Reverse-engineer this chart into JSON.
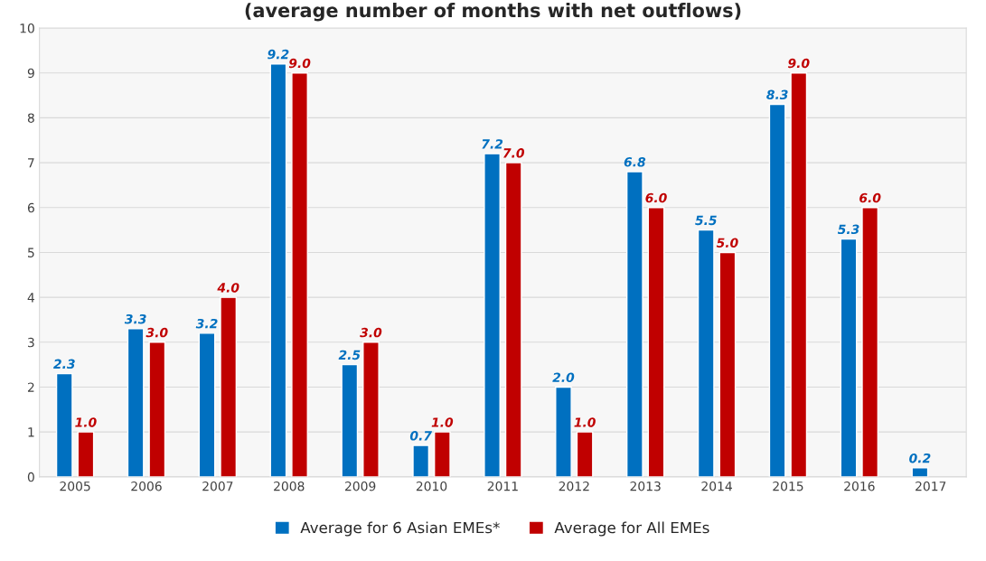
{
  "chart_data": {
    "type": "bar",
    "title": "(average number of months with net outflows)",
    "categories": [
      "2005",
      "2006",
      "2007",
      "2008",
      "2009",
      "2010",
      "2011",
      "2012",
      "2013",
      "2014",
      "2015",
      "2016",
      "2017"
    ],
    "series": [
      {
        "name": "Average for 6 Asian EMEs*",
        "color": "#0070c0",
        "values": [
          2.3,
          3.3,
          3.2,
          9.2,
          2.5,
          0.7,
          7.2,
          2.0,
          6.8,
          5.5,
          8.3,
          5.3,
          0.2
        ],
        "value_labels": [
          "2.3",
          "3.3",
          "3.2",
          "9.2",
          "2.5",
          "0.7",
          "7.2",
          "2.0",
          "6.8",
          "5.5",
          "8.3",
          "5.3",
          "0.2"
        ]
      },
      {
        "name": "Average for All EMEs",
        "color": "#c00000",
        "values": [
          1.0,
          3.0,
          4.0,
          9.0,
          3.0,
          1.0,
          7.0,
          1.0,
          6.0,
          5.0,
          9.0,
          6.0,
          null
        ],
        "value_labels": [
          "1.0",
          "3.0",
          "4.0",
          "9.0",
          "3.0",
          "1.0",
          "7.0",
          "1.0",
          "6.0",
          "5.0",
          "9.0",
          "6.0",
          null
        ]
      }
    ],
    "ylim": [
      0,
      10
    ],
    "yticks": [
      0,
      1,
      2,
      3,
      4,
      5,
      6,
      7,
      8,
      9,
      10
    ],
    "grid": "y",
    "legend": "bottom"
  }
}
